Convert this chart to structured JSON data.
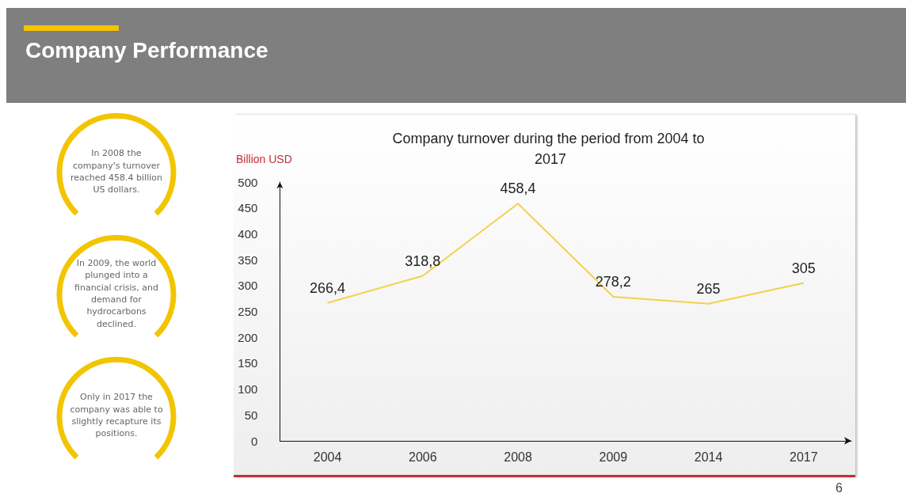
{
  "chart_data": {
    "type": "line",
    "title": "Company Performance",
    "subtitle": "Company turnover during the period from 2004 to 2017",
    "ylabel": "Billion USD",
    "categories": [
      "2004",
      "2006",
      "2008",
      "2009",
      "2014",
      "2017"
    ],
    "series": [
      {
        "color": "#f2d24a",
        "values": [
          266.4,
          318.8,
          458.4,
          278.2,
          265,
          305
        ],
        "value_labels": [
          "266,4",
          "318,8",
          "458,4",
          "278,2",
          "265",
          "305"
        ]
      }
    ],
    "ylim": [
      0,
      500
    ],
    "yticks": [
      0,
      50,
      100,
      150,
      200,
      250,
      300,
      350,
      400,
      450,
      500
    ],
    "grid": false,
    "marker": "none",
    "line_style": "solid",
    "annotations": [
      "In 2008 the company's turnover reached 458.4 billion US dollars.",
      "In 2009, the world plunged into a financial crisis, and demand for hydrocarbons declined.",
      "Only in 2017 the company was able to slightly recapture its positions.",
      "6"
    ]
  }
}
